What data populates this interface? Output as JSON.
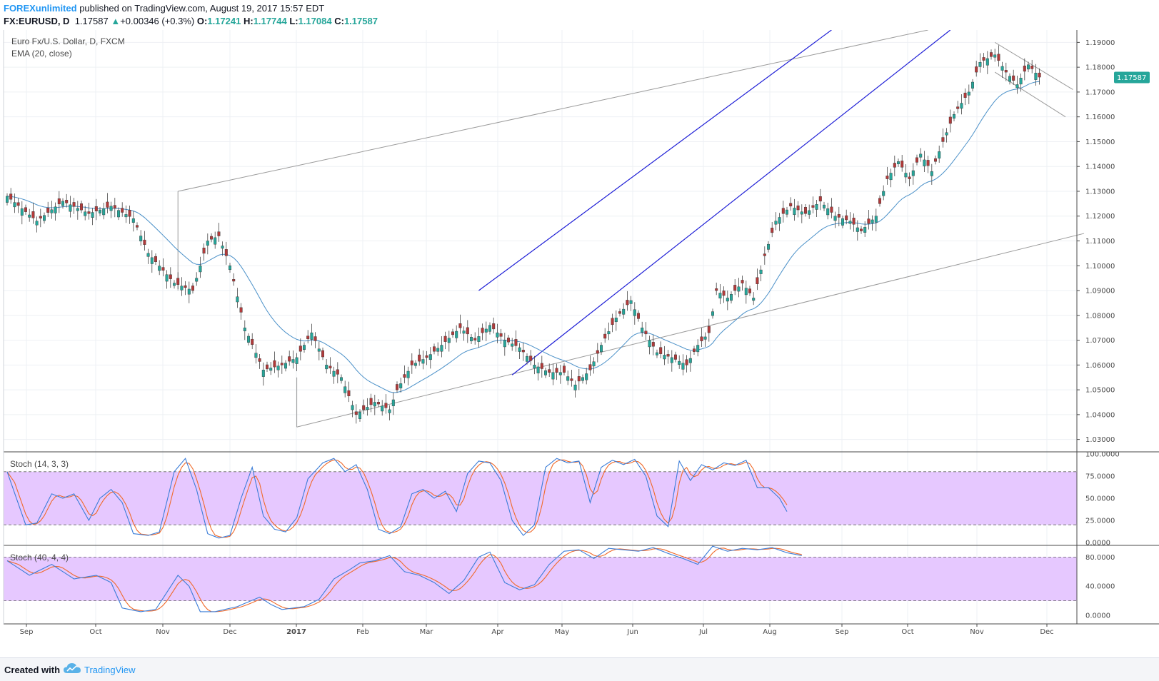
{
  "header": {
    "author": "FOREXunlimited",
    "published_text": "published on TradingView.com, August 19, 2017 15:57 EDT",
    "symbol_line": "FX:EURUSD, D",
    "last": "1.17587",
    "change_arrow": "▲",
    "change": "+0.00346 (+0.3%)",
    "open_label": "O:",
    "open": "1.17241",
    "high_label": "H:",
    "high": "1.17744",
    "low_label": "L:",
    "low": "1.17084",
    "close_label": "C:",
    "close": "1.17587"
  },
  "legend": {
    "title": "Euro Fx/U.S. Dollar, D, FXCM",
    "ema": "EMA (20, close)",
    "stoch1": "Stoch (14, 3, 3)",
    "stoch2": "Stoch (40, 4, 4)"
  },
  "price_label": "1.17587",
  "footer": {
    "created_with": "Created with",
    "brand": "TradingView"
  },
  "colors": {
    "up": "#26a69a",
    "down": "#b23a3a",
    "ema": "#4a90c8",
    "channel": "#1f1fd6",
    "trend": "#9a9a9a",
    "stoch_k": "#3b7dd8",
    "stoch_d": "#f06a2a",
    "band": "#e6c8ff",
    "price_tag": "#26a69a"
  },
  "chart_data": [
    {
      "type": "candlestick",
      "title": "Euro Fx/U.S. Dollar, D, FXCM",
      "ylim": [
        1.025,
        1.195
      ],
      "y_ticks": [
        "1.03000",
        "1.04000",
        "1.05000",
        "1.06000",
        "1.07000",
        "1.08000",
        "1.09000",
        "1.10000",
        "1.11000",
        "1.12000",
        "1.13000",
        "1.14000",
        "1.15000",
        "1.16000",
        "1.17000",
        "1.18000",
        "1.19000"
      ],
      "x_labels": [
        "Sep",
        "Oct",
        "Nov",
        "Dec",
        "2017",
        "Feb",
        "Mar",
        "Apr",
        "May",
        "Jun",
        "Jul",
        "Aug",
        "Sep",
        "Oct",
        "Nov",
        "Dec"
      ],
      "close_path_anchors": [
        [
          0,
          1.128
        ],
        [
          8,
          1.118
        ],
        [
          15,
          1.126
        ],
        [
          22,
          1.121
        ],
        [
          28,
          1.124
        ],
        [
          34,
          1.119
        ],
        [
          38,
          1.105
        ],
        [
          45,
          1.093
        ],
        [
          50,
          1.09
        ],
        [
          54,
          1.11
        ],
        [
          57,
          1.112
        ],
        [
          60,
          1.1
        ],
        [
          64,
          1.075
        ],
        [
          69,
          1.058
        ],
        [
          74,
          1.06
        ],
        [
          78,
          1.063
        ],
        [
          82,
          1.073
        ],
        [
          86,
          1.06
        ],
        [
          90,
          1.055
        ],
        [
          94,
          1.04
        ],
        [
          99,
          1.045
        ],
        [
          103,
          1.042
        ],
        [
          105,
          1.05
        ],
        [
          109,
          1.06
        ],
        [
          113,
          1.063
        ],
        [
          117,
          1.068
        ],
        [
          122,
          1.075
        ],
        [
          126,
          1.07
        ],
        [
          130,
          1.076
        ],
        [
          134,
          1.07
        ],
        [
          138,
          1.067
        ],
        [
          142,
          1.06
        ],
        [
          146,
          1.057
        ],
        [
          150,
          1.057
        ],
        [
          153,
          1.052
        ],
        [
          157,
          1.058
        ],
        [
          160,
          1.068
        ],
        [
          164,
          1.079
        ],
        [
          168,
          1.086
        ],
        [
          171,
          1.075
        ],
        [
          175,
          1.065
        ],
        [
          179,
          1.063
        ],
        [
          183,
          1.06
        ],
        [
          186,
          1.068
        ],
        [
          189,
          1.073
        ],
        [
          191,
          1.09
        ],
        [
          194,
          1.087
        ],
        [
          198,
          1.093
        ],
        [
          201,
          1.087
        ],
        [
          204,
          1.104
        ],
        [
          207,
          1.118
        ],
        [
          211,
          1.124
        ],
        [
          215,
          1.121
        ],
        [
          219,
          1.126
        ],
        [
          223,
          1.12
        ],
        [
          227,
          1.118
        ],
        [
          230,
          1.114
        ],
        [
          234,
          1.12
        ],
        [
          237,
          1.135
        ],
        [
          240,
          1.142
        ],
        [
          243,
          1.135
        ],
        [
          246,
          1.145
        ],
        [
          249,
          1.138
        ],
        [
          252,
          1.15
        ],
        [
          255,
          1.161
        ],
        [
          259,
          1.17
        ],
        [
          262,
          1.182
        ],
        [
          266,
          1.185
        ],
        [
          269,
          1.178
        ],
        [
          272,
          1.173
        ],
        [
          275,
          1.181
        ],
        [
          278,
          1.176
        ]
      ],
      "ema": {
        "name": "EMA (20, close)",
        "period": 20
      }
    },
    {
      "type": "line",
      "title": "Stoch (14, 3, 3)",
      "ylim": [
        0,
        100
      ],
      "y_ticks": [
        "0.0000",
        "25.0000",
        "50.0000",
        "75.0000",
        "100.0000"
      ],
      "bands": [
        20,
        80
      ],
      "k_anchors": [
        [
          0,
          80
        ],
        [
          5,
          20
        ],
        [
          8,
          22
        ],
        [
          12,
          55
        ],
        [
          15,
          50
        ],
        [
          18,
          55
        ],
        [
          22,
          25
        ],
        [
          25,
          50
        ],
        [
          28,
          60
        ],
        [
          31,
          45
        ],
        [
          34,
          10
        ],
        [
          38,
          8
        ],
        [
          41,
          12
        ],
        [
          45,
          80
        ],
        [
          48,
          95
        ],
        [
          51,
          60
        ],
        [
          54,
          10
        ],
        [
          57,
          5
        ],
        [
          60,
          8
        ],
        [
          63,
          50
        ],
        [
          66,
          85
        ],
        [
          69,
          30
        ],
        [
          72,
          15
        ],
        [
          75,
          12
        ],
        [
          78,
          28
        ],
        [
          81,
          72
        ],
        [
          85,
          90
        ],
        [
          88,
          95
        ],
        [
          91,
          80
        ],
        [
          94,
          88
        ],
        [
          97,
          60
        ],
        [
          100,
          15
        ],
        [
          103,
          10
        ],
        [
          106,
          18
        ],
        [
          109,
          55
        ],
        [
          112,
          60
        ],
        [
          115,
          50
        ],
        [
          118,
          58
        ],
        [
          121,
          35
        ],
        [
          124,
          78
        ],
        [
          127,
          92
        ],
        [
          130,
          90
        ],
        [
          133,
          70
        ],
        [
          136,
          25
        ],
        [
          139,
          8
        ],
        [
          142,
          20
        ],
        [
          145,
          85
        ],
        [
          148,
          95
        ],
        [
          151,
          90
        ],
        [
          154,
          92
        ],
        [
          157,
          45
        ],
        [
          160,
          85
        ],
        [
          163,
          93
        ],
        [
          166,
          88
        ],
        [
          169,
          94
        ],
        [
          172,
          75
        ],
        [
          175,
          30
        ],
        [
          178,
          18
        ],
        [
          181,
          92
        ],
        [
          184,
          70
        ],
        [
          187,
          88
        ],
        [
          190,
          82
        ],
        [
          193,
          90
        ],
        [
          196,
          87
        ],
        [
          199,
          93
        ],
        [
          202,
          62
        ],
        [
          205,
          62
        ],
        [
          208,
          50
        ],
        [
          210,
          35
        ]
      ],
      "d_smoothing": 3,
      "series": [
        {
          "name": "%K"
        },
        {
          "name": "%D"
        }
      ]
    },
    {
      "type": "line",
      "title": "Stoch (40, 4, 4)",
      "ylim": [
        0,
        100
      ],
      "y_ticks": [
        "0.0000",
        "40.0000",
        "80.0000"
      ],
      "bands": [
        20,
        80
      ],
      "k_anchors": [
        [
          0,
          75
        ],
        [
          6,
          55
        ],
        [
          12,
          70
        ],
        [
          18,
          50
        ],
        [
          24,
          55
        ],
        [
          28,
          45
        ],
        [
          31,
          10
        ],
        [
          36,
          5
        ],
        [
          40,
          8
        ],
        [
          46,
          55
        ],
        [
          49,
          40
        ],
        [
          52,
          5
        ],
        [
          56,
          5
        ],
        [
          62,
          12
        ],
        [
          68,
          25
        ],
        [
          71,
          15
        ],
        [
          74,
          8
        ],
        [
          80,
          12
        ],
        [
          84,
          22
        ],
        [
          88,
          50
        ],
        [
          92,
          62
        ],
        [
          95,
          72
        ],
        [
          99,
          75
        ],
        [
          103,
          82
        ],
        [
          107,
          60
        ],
        [
          111,
          55
        ],
        [
          115,
          45
        ],
        [
          119,
          30
        ],
        [
          123,
          48
        ],
        [
          127,
          80
        ],
        [
          130,
          87
        ],
        [
          134,
          45
        ],
        [
          138,
          35
        ],
        [
          142,
          42
        ],
        [
          146,
          70
        ],
        [
          150,
          88
        ],
        [
          154,
          90
        ],
        [
          158,
          78
        ],
        [
          162,
          92
        ],
        [
          166,
          90
        ],
        [
          170,
          88
        ],
        [
          174,
          93
        ],
        [
          178,
          85
        ],
        [
          182,
          78
        ],
        [
          186,
          70
        ],
        [
          190,
          95
        ],
        [
          194,
          88
        ],
        [
          198,
          92
        ],
        [
          202,
          90
        ],
        [
          206,
          93
        ],
        [
          210,
          86
        ],
        [
          214,
          82
        ]
      ],
      "d_smoothing": 4,
      "series": [
        {
          "name": "%K"
        },
        {
          "name": "%D"
        }
      ]
    }
  ]
}
